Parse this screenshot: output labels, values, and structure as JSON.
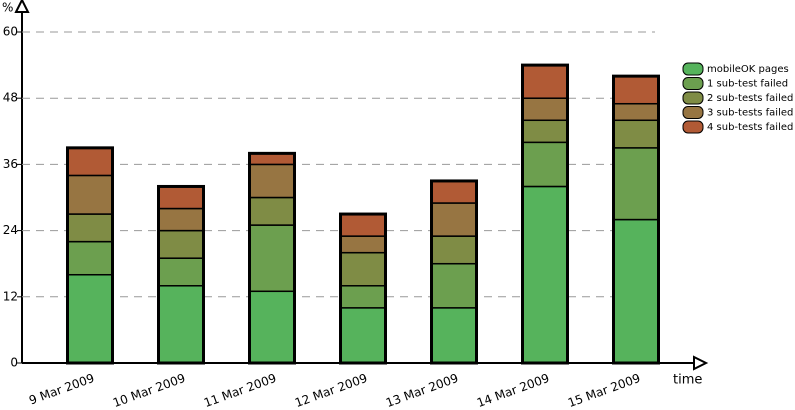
{
  "chart_data": {
    "type": "stacked_bar",
    "y_label": "%",
    "x_label": "time",
    "categories": [
      "9 Mar 2009",
      "10 Mar 2009",
      "11 Mar 2009",
      "12 Mar 2009",
      "13 Mar 2009",
      "14 Mar 2009",
      "15 Mar 2009"
    ],
    "series": [
      {
        "name": "mobileOK pages",
        "color": "#56b35c",
        "values": [
          16,
          14,
          13,
          10,
          10,
          32,
          26
        ]
      },
      {
        "name": "1 sub-test failed",
        "color": "#6c9f4f",
        "values": [
          6,
          5,
          12,
          4,
          8,
          8,
          13
        ]
      },
      {
        "name": "2 sub-tests failed",
        "color": "#7f8c45",
        "values": [
          5,
          5,
          5,
          6,
          5,
          4,
          5
        ]
      },
      {
        "name": "3 sub-tests failed",
        "color": "#977542",
        "values": [
          7,
          4,
          6,
          3,
          6,
          4,
          3
        ]
      },
      {
        "name": "4 sub-tests failed",
        "color": "#b15a35",
        "values": [
          5,
          4,
          2,
          4,
          4,
          6,
          5
        ]
      }
    ],
    "ylim": [
      0,
      60
    ],
    "yticks": [
      0,
      12,
      24,
      36,
      48,
      60
    ],
    "grid": true
  }
}
